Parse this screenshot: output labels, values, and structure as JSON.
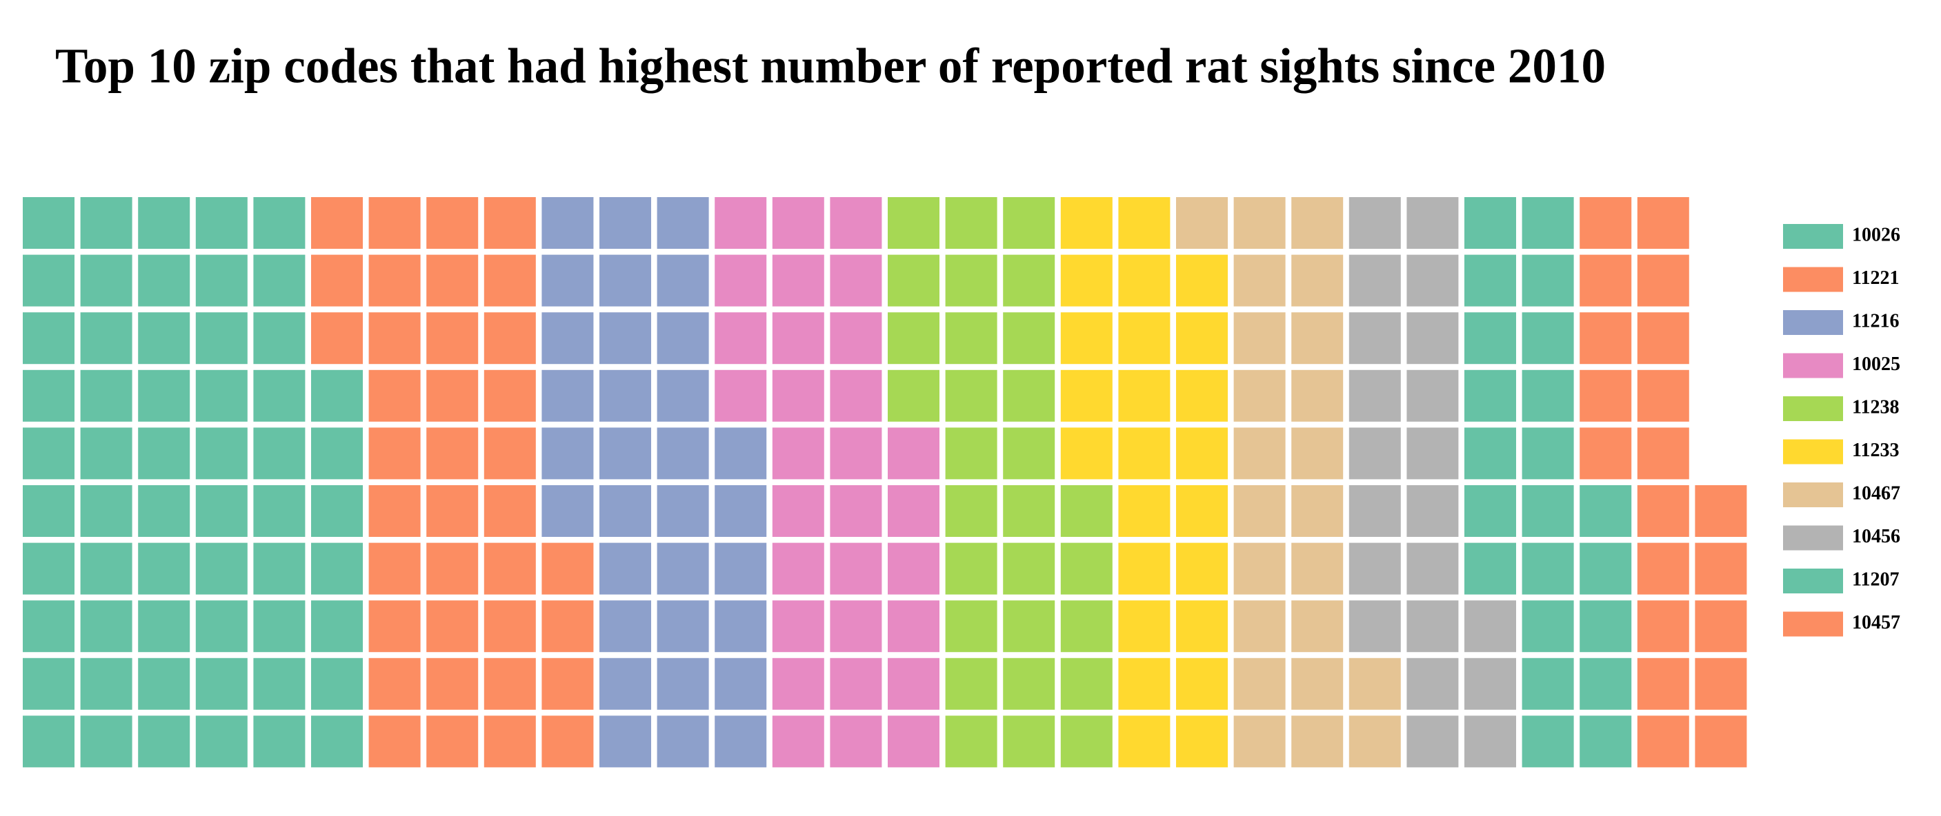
{
  "chart_data": {
    "type": "waffle",
    "title": "Top 10 zip codes that had highest number of reported rat sights since 2010",
    "categories": [
      "10026",
      "11221",
      "11216",
      "10025",
      "11238",
      "11233",
      "10467",
      "10456",
      "11207",
      "10457"
    ],
    "values": [
      57,
      37,
      32,
      30,
      29,
      24,
      23,
      21,
      22,
      20
    ],
    "colors": [
      "#66c2a5",
      "#fc8d62",
      "#8da0cb",
      "#e78ac3",
      "#a6d854",
      "#ffd92f",
      "#e5c494",
      "#b3b3b3",
      "#66c2a5",
      "#fc8d62"
    ]
  }
}
